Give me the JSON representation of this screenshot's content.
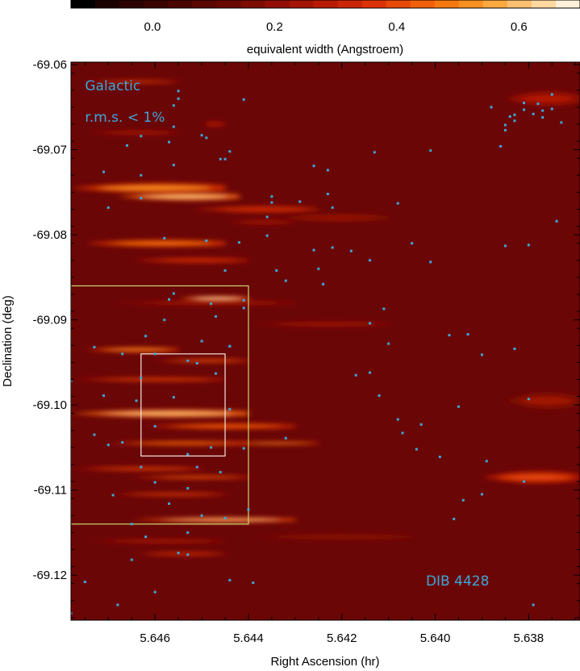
{
  "chart_data": {
    "type": "heatmap",
    "xlabel": "Right Ascension (hr)",
    "ylabel": "Declination (deg)",
    "xlim": [
      5.6478,
      5.6369
    ],
    "ylim": [
      -69.1253,
      -69.0597
    ],
    "x_ticks": [
      5.646,
      5.644,
      5.642,
      5.64,
      5.638
    ],
    "x_tick_labels": [
      "5.646",
      "5.644",
      "5.642",
      "5.640",
      "5.638"
    ],
    "y_ticks": [
      -69.06,
      -69.07,
      -69.08,
      -69.09,
      -69.1,
      -69.11,
      -69.12
    ],
    "y_tick_labels": [
      "-69.06",
      "-69.07",
      "-69.08",
      "-69.09",
      "-69.10",
      "-69.11",
      "-69.12"
    ],
    "colorbar": {
      "label": "equivalent width (Angstroem)",
      "range": [
        -0.1333,
        0.7
      ],
      "ticks": [
        0.0,
        0.2,
        0.4,
        0.6
      ],
      "tick_labels": [
        "0.0",
        "0.2",
        "0.4",
        "0.6"
      ],
      "colors": [
        "#000000",
        "#1c0000",
        "#2c0200",
        "#3b0400",
        "#4a0500",
        "#5a0700",
        "#6a0800",
        "#7d0c02",
        "#910f05",
        "#a41405",
        "#b81a05",
        "#cb2406",
        "#dc3207",
        "#e84808",
        "#f0600a",
        "#f5780f",
        "#f89020",
        "#fba840",
        "#fcc070",
        "#fdd8a0",
        "#fff0d8"
      ]
    },
    "background_color": "#6b0606",
    "streaks": [
      {
        "x1": 5.6478,
        "x2": 5.6445,
        "y": -69.0745,
        "w": 0.002,
        "v": 0.55
      },
      {
        "x1": 5.6468,
        "x2": 5.6442,
        "y": -69.0755,
        "w": 0.0016,
        "v": 0.62
      },
      {
        "x1": 5.6452,
        "x2": 5.6425,
        "y": -69.077,
        "w": 0.0014,
        "v": 0.35
      },
      {
        "x1": 5.6475,
        "x2": 5.6455,
        "y": -69.062,
        "w": 0.0006,
        "v": 0.4
      },
      {
        "x1": 5.6475,
        "x2": 5.6455,
        "y": -69.068,
        "w": 0.0008,
        "v": 0.3
      },
      {
        "x1": 5.645,
        "x2": 5.6445,
        "y": -69.067,
        "w": 0.0012,
        "v": 0.28
      },
      {
        "x1": 5.6475,
        "x2": 5.6445,
        "y": -69.081,
        "w": 0.0014,
        "v": 0.5
      },
      {
        "x1": 5.6465,
        "x2": 5.644,
        "y": -69.083,
        "w": 0.001,
        "v": 0.38
      },
      {
        "x1": 5.6445,
        "x2": 5.643,
        "y": -69.0785,
        "w": 0.0008,
        "v": 0.3
      },
      {
        "x1": 5.647,
        "x2": 5.643,
        "y": -69.088,
        "w": 0.0008,
        "v": 0.28
      },
      {
        "x1": 5.6455,
        "x2": 5.644,
        "y": -69.0875,
        "w": 0.001,
        "v": 0.66
      },
      {
        "x1": 5.6475,
        "x2": 5.6455,
        "y": -69.0935,
        "w": 0.001,
        "v": 0.55
      },
      {
        "x1": 5.646,
        "x2": 5.644,
        "y": -69.0948,
        "w": 0.0007,
        "v": 0.45
      },
      {
        "x1": 5.644,
        "x2": 5.641,
        "y": -69.0905,
        "w": 0.0008,
        "v": 0.3
      },
      {
        "x1": 5.6478,
        "x2": 5.6445,
        "y": -69.097,
        "w": 0.0008,
        "v": 0.4
      },
      {
        "x1": 5.6478,
        "x2": 5.644,
        "y": -69.101,
        "w": 0.0016,
        "v": 0.62
      },
      {
        "x1": 5.6462,
        "x2": 5.643,
        "y": -69.1025,
        "w": 0.0012,
        "v": 0.45
      },
      {
        "x1": 5.647,
        "x2": 5.644,
        "y": -69.1045,
        "w": 0.0008,
        "v": 0.5
      },
      {
        "x1": 5.6445,
        "x2": 5.6425,
        "y": -69.1045,
        "w": 0.0006,
        "v": 0.55
      },
      {
        "x1": 5.6478,
        "x2": 5.645,
        "y": -69.1075,
        "w": 0.0008,
        "v": 0.4
      },
      {
        "x1": 5.6465,
        "x2": 5.644,
        "y": -69.1085,
        "w": 0.0007,
        "v": 0.45
      },
      {
        "x1": 5.647,
        "x2": 5.6445,
        "y": -69.1105,
        "w": 0.0007,
        "v": 0.42
      },
      {
        "x1": 5.6465,
        "x2": 5.643,
        "y": -69.1135,
        "w": 0.001,
        "v": 0.6
      },
      {
        "x1": 5.6475,
        "x2": 5.6445,
        "y": -69.116,
        "w": 0.0008,
        "v": 0.28
      },
      {
        "x1": 5.6465,
        "x2": 5.6445,
        "y": -69.1175,
        "w": 0.0008,
        "v": 0.35
      },
      {
        "x1": 5.644,
        "x2": 5.6405,
        "y": -69.1155,
        "w": 0.0012,
        "v": 0.22
      },
      {
        "x1": 5.639,
        "x2": 5.6369,
        "y": -69.1085,
        "w": 0.0025,
        "v": 0.4
      },
      {
        "x1": 5.6385,
        "x2": 5.6369,
        "y": -69.0995,
        "w": 0.0035,
        "v": 0.25
      },
      {
        "x1": 5.6385,
        "x2": 5.6369,
        "y": -69.064,
        "w": 0.003,
        "v": 0.28
      },
      {
        "x1": 5.6435,
        "x2": 5.641,
        "y": -69.078,
        "w": 0.0015,
        "v": 0.25
      }
    ],
    "boxes": [
      {
        "x1": 5.6478,
        "x2": 5.644,
        "y1": -69.086,
        "y2": -69.114,
        "color": "#c8d870"
      },
      {
        "x1": 5.6463,
        "x2": 5.6445,
        "y1": -69.094,
        "y2": -69.106,
        "color": "#f2e6e0"
      }
    ],
    "marker_color": "#3aa8d8",
    "stars": [
      [
        5.6478,
        -69.1245
      ],
      [
        5.6455,
        -69.0631
      ],
      [
        5.6441,
        -69.0641
      ],
      [
        5.6455,
        -69.064
      ],
      [
        5.6456,
        -69.0648
      ],
      [
        5.6456,
        -69.0673
      ],
      [
        5.6463,
        -69.0684
      ],
      [
        5.6449,
        -69.0686
      ],
      [
        5.645,
        -69.0683
      ],
      [
        5.6457,
        -69.0691
      ],
      [
        5.6466,
        -69.0695
      ],
      [
        5.6426,
        -69.0719
      ],
      [
        5.6444,
        -69.0702
      ],
      [
        5.6445,
        -69.0711
      ],
      [
        5.6446,
        -69.0711
      ],
      [
        5.6463,
        -69.073
      ],
      [
        5.6471,
        -69.0726
      ],
      [
        5.6456,
        -69.0718
      ],
      [
        5.6463,
        -69.0757
      ],
      [
        5.647,
        -69.0768
      ],
      [
        5.6479,
        -69.0764
      ],
      [
        5.6422,
        -69.0768
      ],
      [
        5.6423,
        -69.0752
      ],
      [
        5.6435,
        -69.0755
      ],
      [
        5.6435,
        -69.0762
      ],
      [
        5.6436,
        -69.0779
      ],
      [
        5.6429,
        -69.0761
      ],
      [
        5.6418,
        -69.0819
      ],
      [
        5.6422,
        -69.0815
      ],
      [
        5.6405,
        -69.081
      ],
      [
        5.6458,
        -69.0804
      ],
      [
        5.6449,
        -69.0807
      ],
      [
        5.6436,
        -69.0801
      ],
      [
        5.6442,
        -69.0809
      ],
      [
        5.6426,
        -69.0818
      ],
      [
        5.6445,
        -69.0842
      ],
      [
        5.6434,
        -69.0842
      ],
      [
        5.6432,
        -69.0854
      ],
      [
        5.6456,
        -69.0869
      ],
      [
        5.6457,
        -69.0876
      ],
      [
        5.6441,
        -69.0877
      ],
      [
        5.6448,
        -69.0881
      ],
      [
        5.6441,
        -69.0886
      ],
      [
        5.6447,
        -69.0896
      ],
      [
        5.6458,
        -69.09
      ],
      [
        5.6462,
        -69.0919
      ],
      [
        5.645,
        -69.0925
      ],
      [
        5.6444,
        -69.0931
      ],
      [
        5.6444,
        -69.0931
      ],
      [
        5.6473,
        -69.0932
      ],
      [
        5.6467,
        -69.094
      ],
      [
        5.646,
        -69.094
      ],
      [
        5.6453,
        -69.0948
      ],
      [
        5.6451,
        -69.0951
      ],
      [
        5.6447,
        -69.0963
      ],
      [
        5.6463,
        -69.0968
      ],
      [
        5.6478,
        -69.0972
      ],
      [
        5.6471,
        -69.0989
      ],
      [
        5.6464,
        -69.0995
      ],
      [
        5.6456,
        -69.0991
      ],
      [
        5.6444,
        -69.1005
      ],
      [
        5.646,
        -69.1025
      ],
      [
        5.6473,
        -69.1035
      ],
      [
        5.6467,
        -69.1044
      ],
      [
        5.647,
        -69.1047
      ],
      [
        5.6448,
        -69.105
      ],
      [
        5.6453,
        -69.1058
      ],
      [
        5.6441,
        -69.1051
      ],
      [
        5.6432,
        -69.1039
      ],
      [
        5.6463,
        -69.1073
      ],
      [
        5.6451,
        -69.1073
      ],
      [
        5.6446,
        -69.1079
      ],
      [
        5.646,
        -69.1091
      ],
      [
        5.6453,
        -69.1098
      ],
      [
        5.6469,
        -69.1106
      ],
      [
        5.6457,
        -69.1116
      ],
      [
        5.644,
        -69.1123
      ],
      [
        5.645,
        -69.113
      ],
      [
        5.6445,
        -69.1133
      ],
      [
        5.6465,
        -69.114
      ],
      [
        5.6453,
        -69.115
      ],
      [
        5.6462,
        -69.1155
      ],
      [
        5.6453,
        -69.1176
      ],
      [
        5.6455,
        -69.1174
      ],
      [
        5.6465,
        -69.1182
      ],
      [
        5.6475,
        -69.1208
      ],
      [
        5.6444,
        -69.1206
      ],
      [
        5.6439,
        -69.1209
      ],
      [
        5.646,
        -69.122
      ],
      [
        5.6468,
        -69.1235
      ],
      [
        5.6417,
        -69.0965
      ],
      [
        5.6414,
        -69.0962
      ],
      [
        5.6412,
        -69.0989
      ],
      [
        5.6408,
        -69.1017
      ],
      [
        5.6404,
        -69.1052
      ],
      [
        5.6395,
        -69.1002
      ],
      [
        5.6407,
        -69.1033
      ],
      [
        5.6403,
        -69.1023
      ],
      [
        5.6399,
        -69.1061
      ],
      [
        5.6394,
        -69.1112
      ],
      [
        5.6396,
        -69.1134
      ],
      [
        5.6389,
        -69.1066
      ],
      [
        5.639,
        -69.1105
      ],
      [
        5.6381,
        -69.109
      ],
      [
        5.6383,
        -69.0934
      ],
      [
        5.639,
        -69.0941
      ],
      [
        5.638,
        -69.0993
      ],
      [
        5.6393,
        -69.0917
      ],
      [
        5.6397,
        -69.0918
      ],
      [
        5.641,
        -69.0928
      ],
      [
        5.6414,
        -69.0904
      ],
      [
        5.6411,
        -69.0887
      ],
      [
        5.6424,
        -69.0858
      ],
      [
        5.6425,
        -69.084
      ],
      [
        5.6414,
        -69.083
      ],
      [
        5.6401,
        -69.0832
      ],
      [
        5.6385,
        -69.0813
      ],
      [
        5.638,
        -69.0812
      ],
      [
        5.6381,
        -69.0653
      ],
      [
        5.6381,
        -69.0645
      ],
      [
        5.6383,
        -69.0659
      ],
      [
        5.6385,
        -69.0671
      ],
      [
        5.6383,
        -69.0666
      ],
      [
        5.6384,
        -69.0661
      ],
      [
        5.6385,
        -69.0677
      ],
      [
        5.6375,
        -69.0652
      ],
      [
        5.6377,
        -69.0654
      ],
      [
        5.6379,
        -69.0658
      ],
      [
        5.6378,
        -69.0646
      ],
      [
        5.6386,
        -69.0696
      ],
      [
        5.6388,
        -69.065
      ],
      [
        5.6375,
        -69.0635
      ],
      [
        5.6377,
        -69.0662
      ],
      [
        5.6373,
        -69.0668
      ],
      [
        5.6379,
        -69.1235
      ],
      [
        5.6413,
        -69.0703
      ],
      [
        5.6401,
        -69.0701
      ],
      [
        5.6423,
        -69.0724
      ],
      [
        5.6408,
        -69.0763
      ],
      [
        5.6374,
        -69.0784
      ]
    ],
    "annotations": [
      {
        "text": "Galactic",
        "x": 5.6475,
        "y": -69.063,
        "color": "#3aa8d8"
      },
      {
        "text": "r.m.s. < 1%",
        "x": 5.6475,
        "y": -69.0667,
        "color": "#3aa8d8"
      },
      {
        "text": "DIB 4428",
        "x": 5.6402,
        "y": -69.1212,
        "color": "#3aa8d8"
      }
    ]
  }
}
